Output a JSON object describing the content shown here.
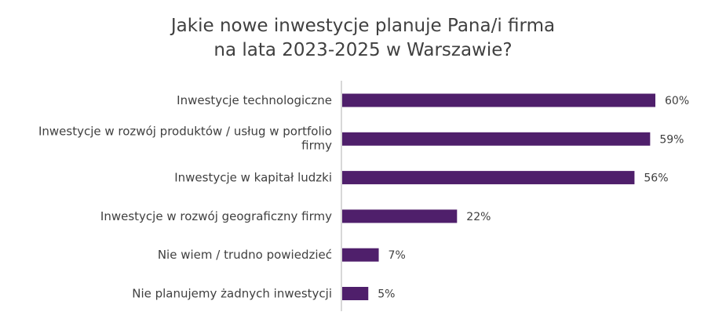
{
  "title_lines": [
    "Jakie nowe inwestycje planuje Pana/i firma",
    "na lata 2023-2025 w Warszawie?"
  ],
  "colors": {
    "bar": "#4f1f6b",
    "axis": "#bfbfbf",
    "text": "#404040"
  },
  "chart_data": {
    "type": "bar",
    "orientation": "horizontal",
    "title": "Jakie nowe inwestycje planuje Pana/i firma na lata 2023-2025 w Warszawie?",
    "categories": [
      [
        "Inwestycje technologiczne"
      ],
      [
        "Inwestycje w rozwój produktów / usług w portfolio",
        "firmy"
      ],
      [
        "Inwestycje w kapitał ludzki"
      ],
      [
        "Inwestycje w rozwój geograficzny firmy"
      ],
      [
        "Nie  wiem / trudno powiedzieć"
      ],
      [
        "Nie planujemy żadnych inwestycji"
      ]
    ],
    "values": [
      60,
      59,
      56,
      22,
      7,
      5
    ],
    "value_labels": [
      "60%",
      "59%",
      "56%",
      "22%",
      "7%",
      "5%"
    ],
    "xlim": [
      0,
      60
    ],
    "grid": false,
    "legend": "none"
  }
}
